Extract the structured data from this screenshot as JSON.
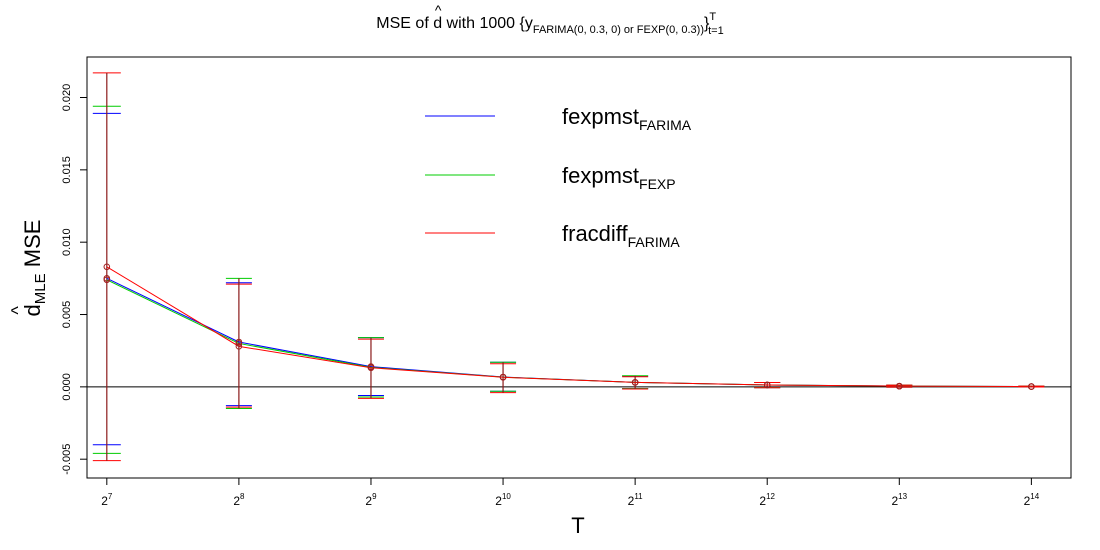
{
  "chart_data": {
    "type": "line",
    "title": {
      "prefix": "MSE of ",
      "symbol": "d",
      "hat": "^",
      "middle": " with 1000  {y",
      "subscript": "FARIMA(0, 0.3, 0)  or  FEXP(0, 0.3))",
      "close": "}",
      "sup": "T",
      "sub2": "t=1"
    },
    "xlabel": "T",
    "ylabel": {
      "symbol": "d",
      "hat": "^",
      "subscript": "MLE",
      "text": " MSE"
    },
    "x_ticks": [
      {
        "base": "2",
        "exp": "7"
      },
      {
        "base": "2",
        "exp": "8"
      },
      {
        "base": "2",
        "exp": "9"
      },
      {
        "base": "2",
        "exp": "10"
      },
      {
        "base": "2",
        "exp": "11"
      },
      {
        "base": "2",
        "exp": "12"
      },
      {
        "base": "2",
        "exp": "13"
      },
      {
        "base": "2",
        "exp": "14"
      }
    ],
    "x_exponents": [
      7,
      8,
      9,
      10,
      11,
      12,
      13,
      14
    ],
    "y_ticks": [
      -0.005,
      0.0,
      0.005,
      0.01,
      0.015,
      0.02
    ],
    "y_tick_labels": [
      "-0.005",
      "0.000",
      "0.005",
      "0.010",
      "0.015",
      "0.020"
    ],
    "ylim": [
      -0.0063,
      0.0228
    ],
    "xlim": [
      6.85,
      14.3
    ],
    "reference_line": 0.0,
    "series": [
      {
        "name": "fexpmst",
        "name_sub": "FARIMA",
        "color": "#0000ff",
        "values": [
          0.0075,
          0.0031,
          0.0014,
          0.00068,
          0.00031,
          0.00013,
          5e-05,
          2e-05
        ],
        "lower": [
          -0.004,
          -0.0013,
          -0.0006,
          -0.0003,
          -0.00012,
          -5e-05,
          -2e-05,
          -1e-05
        ],
        "upper": [
          0.0189,
          0.0072,
          0.0034,
          0.0017,
          0.00075,
          0.0003,
          0.00012,
          5e-05
        ]
      },
      {
        "name": "fexpmst",
        "name_sub": "FEXP",
        "color": "#00cc00",
        "values": [
          0.0074,
          0.003,
          0.00135,
          0.00067,
          0.00031,
          0.00013,
          5e-05,
          2e-05
        ],
        "lower": [
          -0.0046,
          -0.0015,
          -0.0007,
          -0.0003,
          -0.00012,
          -5e-05,
          -2e-05,
          -1e-05
        ],
        "upper": [
          0.0194,
          0.0075,
          0.0034,
          0.0017,
          0.00077,
          0.0003,
          0.00012,
          5e-05
        ]
      },
      {
        "name": "fracdiff",
        "name_sub": "FARIMA",
        "color": "#ff0000",
        "values": [
          0.0083,
          0.0028,
          0.00132,
          0.00066,
          0.00031,
          0.00013,
          5e-05,
          2e-05
        ],
        "lower": [
          -0.0051,
          -0.0014,
          -0.0008,
          -0.0004,
          -0.00015,
          -6e-05,
          -2e-05,
          -1e-05
        ],
        "upper": [
          0.0217,
          0.0071,
          0.0033,
          0.0016,
          0.0007,
          0.0003,
          0.00012,
          5e-05
        ]
      }
    ],
    "point_color": "#a02020",
    "errorbar_stem_color": "#8b1a1a",
    "legend_position": "top-center",
    "grid": false
  }
}
